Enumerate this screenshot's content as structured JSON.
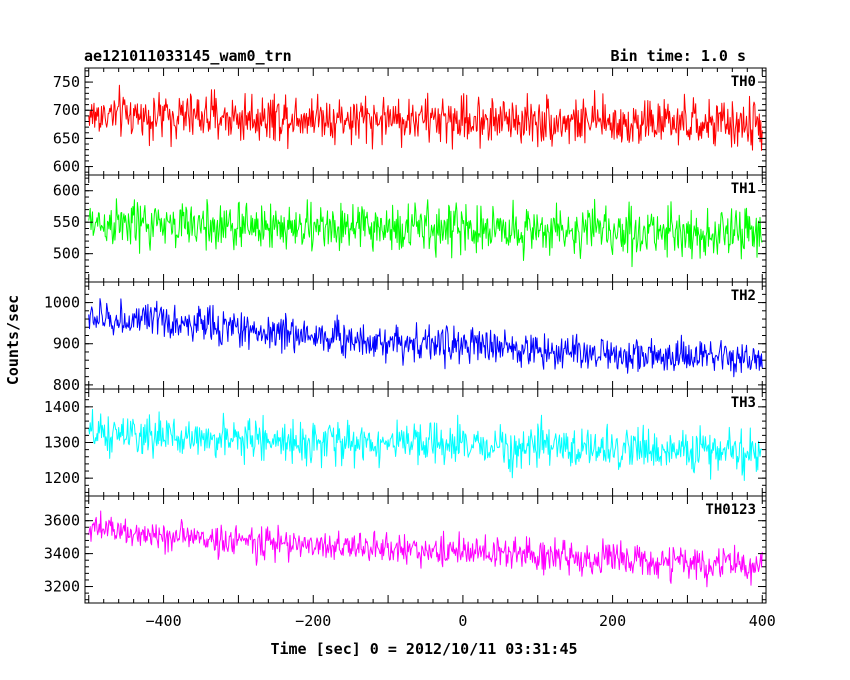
{
  "header": {
    "left": "ae121011033145_wam0_trn",
    "right": "Bin time: 1.0 s"
  },
  "chart_data": {
    "type": "line",
    "xlabel": "Time [sec] 0 = 2012/10/11 03:31:45",
    "ylabel": "Counts/sec",
    "xlim": [
      -505,
      405
    ],
    "x_ticks": [
      -400,
      -200,
      0,
      200,
      400
    ],
    "bin_time_s": 1.0,
    "series": [
      {
        "name": "TH0",
        "color": "#ff0000",
        "ylim": [
          585,
          775
        ],
        "y_ticks": [
          600,
          650,
          700,
          750
        ],
        "x": [
          -500,
          -450,
          -400,
          -350,
          -300,
          -250,
          -200,
          -150,
          -100,
          -50,
          0,
          50,
          100,
          150,
          200,
          250,
          300,
          350,
          400
        ],
        "mean": [
          690,
          692,
          688,
          690,
          686,
          688,
          690,
          684,
          686,
          684,
          682,
          684,
          682,
          680,
          678,
          678,
          676,
          674,
          672
        ],
        "low": [
          620,
          625,
          615,
          625,
          610,
          618,
          620,
          605,
          612,
          610,
          610,
          605,
          612,
          608,
          600,
          610,
          600,
          602,
          598
        ],
        "high": [
          765,
          760,
          762,
          758,
          760,
          765,
          762,
          752,
          758,
          755,
          760,
          755,
          752,
          750,
          748,
          752,
          745,
          748,
          750
        ]
      },
      {
        "name": "TH1",
        "color": "#00ff00",
        "ylim": [
          455,
          625
        ],
        "y_ticks": [
          500,
          550,
          600
        ],
        "x": [
          -500,
          -450,
          -400,
          -350,
          -300,
          -250,
          -200,
          -150,
          -100,
          -50,
          0,
          50,
          100,
          150,
          200,
          250,
          300,
          350,
          400
        ],
        "mean": [
          548,
          546,
          545,
          544,
          542,
          544,
          540,
          540,
          542,
          540,
          538,
          540,
          538,
          536,
          536,
          534,
          534,
          532,
          532
        ],
        "low": [
          485,
          482,
          480,
          478,
          478,
          480,
          472,
          478,
          478,
          474,
          475,
          472,
          475,
          472,
          470,
          470,
          468,
          465,
          465
        ],
        "high": [
          615,
          612,
          610,
          612,
          608,
          610,
          608,
          606,
          608,
          606,
          610,
          604,
          606,
          600,
          604,
          600,
          602,
          598,
          600
        ]
      },
      {
        "name": "TH2",
        "color": "#0000ff",
        "ylim": [
          790,
          1050
        ],
        "y_ticks": [
          800,
          900,
          1000
        ],
        "x": [
          -500,
          -450,
          -400,
          -350,
          -300,
          -250,
          -200,
          -150,
          -100,
          -50,
          0,
          50,
          100,
          150,
          200,
          250,
          300,
          350,
          400
        ],
        "mean": [
          960,
          955,
          950,
          945,
          935,
          925,
          920,
          910,
          905,
          900,
          895,
          890,
          885,
          880,
          875,
          870,
          865,
          862,
          860
        ],
        "low": [
          900,
          890,
          880,
          875,
          865,
          855,
          850,
          840,
          835,
          830,
          825,
          815,
          810,
          805,
          800,
          800,
          795,
          795,
          795
        ],
        "high": [
          1045,
          1040,
          1035,
          1025,
          1015,
          1005,
          1000,
          990,
          985,
          980,
          975,
          965,
          960,
          955,
          950,
          945,
          940,
          935,
          935
        ]
      },
      {
        "name": "TH3",
        "color": "#00ffff",
        "ylim": [
          1150,
          1450
        ],
        "y_ticks": [
          1200,
          1300,
          1400
        ],
        "x": [
          -500,
          -450,
          -400,
          -350,
          -300,
          -250,
          -200,
          -150,
          -100,
          -50,
          0,
          50,
          100,
          150,
          200,
          250,
          300,
          350,
          400
        ],
        "mean": [
          1320,
          1318,
          1315,
          1312,
          1310,
          1305,
          1302,
          1300,
          1298,
          1295,
          1292,
          1290,
          1288,
          1285,
          1282,
          1280,
          1278,
          1275,
          1272
        ],
        "low": [
          1230,
          1225,
          1220,
          1218,
          1215,
          1210,
          1205,
          1200,
          1200,
          1195,
          1195,
          1190,
          1188,
          1185,
          1180,
          1175,
          1170,
          1168,
          1165
        ],
        "high": [
          1420,
          1415,
          1412,
          1410,
          1405,
          1400,
          1398,
          1395,
          1392,
          1390,
          1388,
          1385,
          1382,
          1380,
          1400,
          1378,
          1375,
          1372,
          1370
        ]
      },
      {
        "name": "TH0123",
        "color": "#ff00ff",
        "ylim": [
          3100,
          3750
        ],
        "y_ticks": [
          3200,
          3400,
          3600
        ],
        "x": [
          -500,
          -450,
          -400,
          -350,
          -300,
          -250,
          -200,
          -150,
          -100,
          -50,
          0,
          50,
          100,
          150,
          200,
          250,
          300,
          350,
          400
        ],
        "mean": [
          3550,
          3530,
          3510,
          3490,
          3475,
          3460,
          3450,
          3440,
          3430,
          3420,
          3410,
          3400,
          3390,
          3375,
          3365,
          3350,
          3340,
          3330,
          3320
        ],
        "low": [
          3400,
          3380,
          3350,
          3340,
          3320,
          3300,
          3290,
          3280,
          3270,
          3260,
          3250,
          3240,
          3230,
          3210,
          3200,
          3180,
          3170,
          3150,
          3140
        ],
        "high": [
          3700,
          3690,
          3670,
          3650,
          3640,
          3620,
          3610,
          3600,
          3590,
          3580,
          3580,
          3570,
          3560,
          3560,
          3560,
          3540,
          3530,
          3520,
          3510
        ]
      }
    ]
  }
}
